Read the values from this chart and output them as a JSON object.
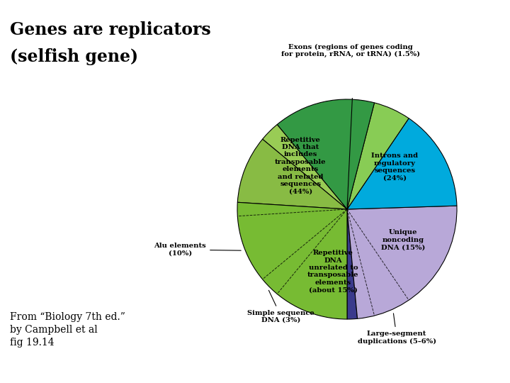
{
  "title_line1": "Genes are replicators",
  "title_line2": "(selfish gene)",
  "footer_line1": "From “Biology 7th ed.”",
  "footer_line2": "by Campbell et al",
  "footer_line3": "fig 19.14",
  "slices": [
    {
      "label": "Exons (regions of genes coding\nfor protein, rRNA, or tRNA) (1.5%)",
      "pct": 1.5,
      "color": "#3a3a8c",
      "outside": true
    },
    {
      "label": "Introns and\nregulatory\nsequences\n(24%)",
      "pct": 24.0,
      "color": "#b8a8d8",
      "outside": false
    },
    {
      "label": "Unique\nnoncoding\nDNA (15%)",
      "pct": 15.0,
      "color": "#00aadd",
      "outside": false
    },
    {
      "label": "Large-segment\nduplications (5–6%)",
      "pct": 5.5,
      "color": "#88cc55",
      "outside": true
    },
    {
      "label": "Repetitive\nDNA\nunrelated to\ntransposable\nelements\n(about 15%)",
      "pct": 15.0,
      "color": "#339944",
      "outside": false
    },
    {
      "label": "Simple sequence\nDNA (3%)",
      "pct": 3.0,
      "color": "#99cc55",
      "outside": true
    },
    {
      "label": "Alu elements\n(10%)",
      "pct": 10.0,
      "color": "#88bb44",
      "outside": true
    },
    {
      "label": "Repetitive\nDNA that\nincludes\ntransposable\nelements\nand related\nsequences\n(44%)",
      "pct": 26.0,
      "color": "#77bb33",
      "outside": false
    }
  ],
  "background_color": "#ffffff"
}
